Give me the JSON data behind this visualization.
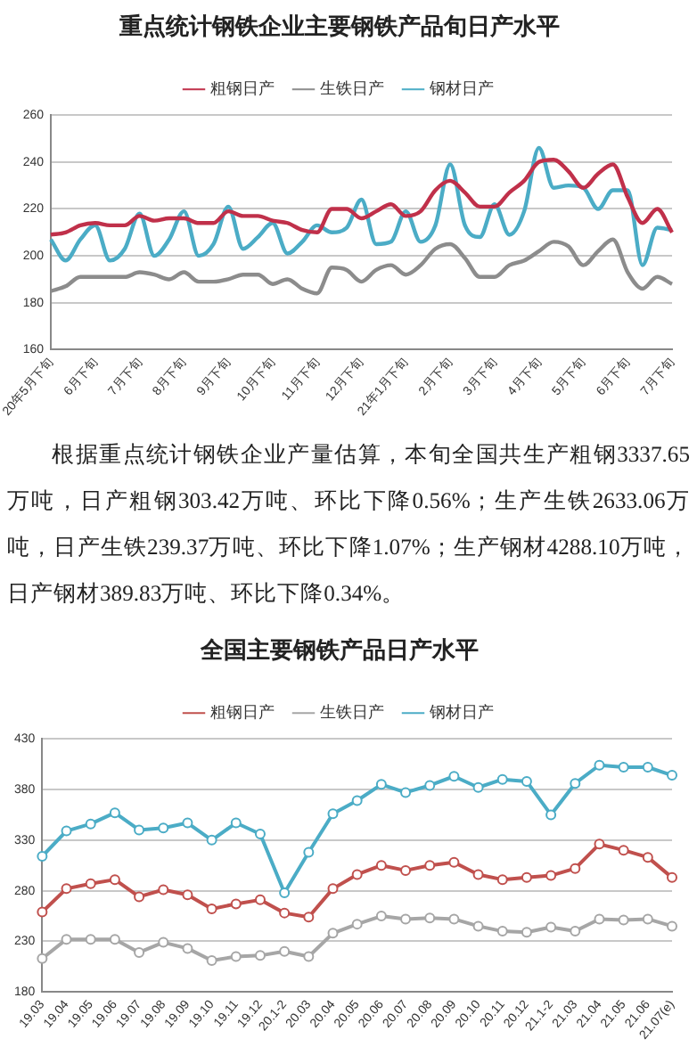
{
  "chart_data": [
    {
      "type": "line",
      "title": "重点统计钢铁企业主要钢铁产品旬日产水平",
      "categories": [
        "20年5月下旬",
        null,
        null,
        "6月下旬",
        null,
        null,
        "7月下旬",
        null,
        null,
        "8月下旬",
        null,
        null,
        "9月下旬",
        null,
        null,
        "10月下旬",
        null,
        null,
        "11月下旬",
        null,
        null,
        "12月下旬",
        null,
        null,
        "21年1月下旬",
        null,
        null,
        "2月下旬",
        null,
        null,
        "3月下旬",
        null,
        null,
        "4月下旬",
        null,
        null,
        "5月下旬",
        null,
        null,
        "6月下旬",
        null,
        null,
        "7月下旬"
      ],
      "series": [
        {
          "name": "粗钢日产",
          "color": "#c0304a",
          "values": [
            209,
            210,
            213,
            214,
            213,
            213,
            217,
            215,
            216,
            216,
            214,
            214,
            219,
            217,
            217,
            215,
            214,
            211,
            210,
            220,
            220,
            216,
            219,
            222,
            217,
            219,
            228,
            232,
            227,
            221,
            221,
            227,
            232,
            240,
            241,
            236,
            229,
            235,
            239,
            225,
            214,
            220,
            210
          ]
        },
        {
          "name": "生铁日产",
          "color": "#8c8c8c",
          "values": [
            185,
            187,
            191,
            191,
            191,
            191,
            193,
            192,
            190,
            193,
            189,
            189,
            190,
            192,
            192,
            188,
            190,
            186,
            184,
            195,
            194,
            189,
            194,
            196,
            192,
            196,
            203,
            205,
            199,
            191,
            191,
            196,
            198,
            202,
            206,
            204,
            196,
            202,
            207,
            193,
            186,
            191,
            188
          ]
        },
        {
          "name": "钢材日产",
          "color": "#4bacc6",
          "values": [
            207,
            198,
            207,
            213,
            198,
            203,
            218,
            200,
            207,
            219,
            200,
            205,
            221,
            203,
            208,
            214,
            201,
            206,
            213,
            210,
            212,
            224,
            205,
            206,
            219,
            206,
            213,
            239,
            213,
            208,
            222,
            209,
            219,
            246,
            229,
            230,
            229,
            220,
            228,
            228,
            196,
            212,
            211
          ]
        }
      ],
      "ylim": [
        160,
        260
      ],
      "yticks": [
        160,
        180,
        200,
        220,
        240,
        260
      ],
      "grid": "y",
      "legend": "top",
      "marker": "none"
    },
    {
      "type": "other",
      "annotations": [
        "根据重点统计钢铁企业产量估算，本旬全国共生产粗钢3337.65万吨，日产粗钢303.42万吨、环比下降0.56%；生产生铁2633.06万吨，日产生铁239.37万吨、环比下降1.07%；生产钢材4288.10万吨，日产钢材389.83万吨、环比下降0.34%。"
      ]
    },
    {
      "type": "line",
      "title": "全国主要钢铁产品日产水平",
      "categories": [
        "19.03",
        "19.04",
        "19.05",
        "19.06",
        "19.07",
        "19.08",
        "19.09",
        "19.10",
        "19.11",
        "19.12",
        "20.1-2",
        "20.03",
        "20.04",
        "20.05",
        "20.06",
        "20.07",
        "20.08",
        "20.09",
        "20.10",
        "20.11",
        "20.12",
        "21.1-2",
        "21.03",
        "21.04",
        "21.05",
        "21.06",
        "21.07(e)"
      ],
      "series": [
        {
          "name": "粗钢日产",
          "color": "#c0504d",
          "values": [
            259,
            282,
            287,
            291,
            274,
            281,
            276,
            262,
            267,
            271,
            258,
            254,
            282,
            296,
            305,
            300,
            305,
            308,
            296,
            291,
            293,
            295,
            302,
            326,
            320,
            313,
            293
          ]
        },
        {
          "name": "生铁日产",
          "color": "#a6a6a6",
          "values": [
            213,
            232,
            232,
            232,
            219,
            229,
            223,
            211,
            215,
            216,
            220,
            215,
            238,
            247,
            255,
            252,
            253,
            252,
            245,
            240,
            239,
            244,
            240,
            252,
            251,
            252,
            245
          ]
        },
        {
          "name": "钢材日产",
          "color": "#4bacc6",
          "values": [
            314,
            339,
            346,
            357,
            340,
            342,
            347,
            330,
            347,
            336,
            278,
            318,
            356,
            369,
            385,
            377,
            384,
            393,
            382,
            390,
            388,
            355,
            386,
            404,
            402,
            402,
            394
          ]
        }
      ],
      "ylim": [
        180,
        430
      ],
      "yticks": [
        180,
        230,
        280,
        330,
        380,
        430
      ],
      "grid": "y",
      "legend": "top",
      "marker": "circle"
    }
  ]
}
